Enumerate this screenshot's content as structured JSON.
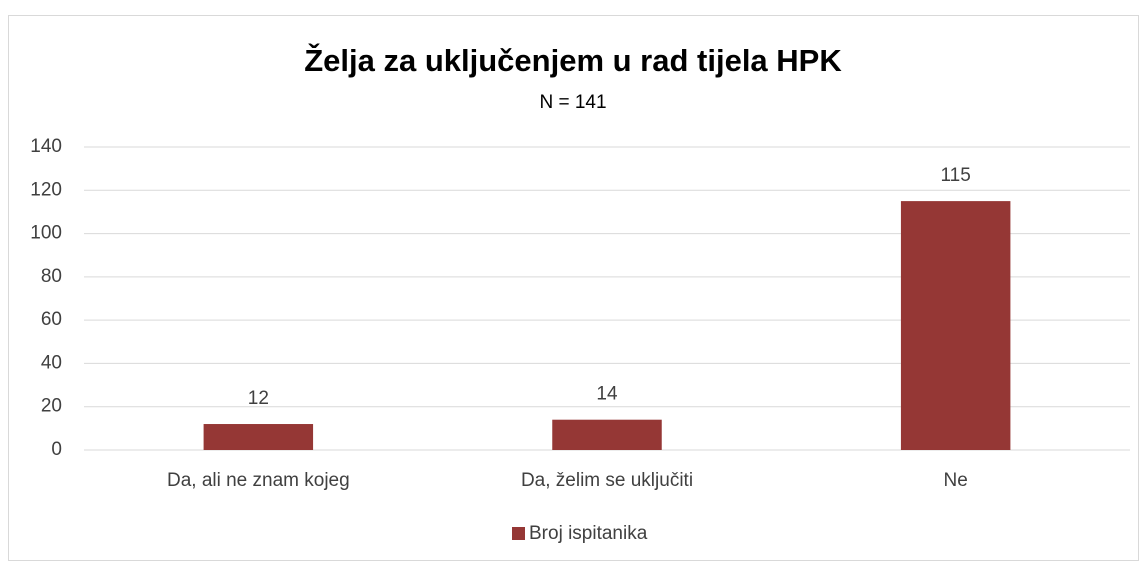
{
  "chart_data": {
    "type": "bar",
    "title": "Želja za uključenjem u rad tijela HPK",
    "subtitle": "N = 141",
    "categories": [
      "Da, ali ne znam kojeg",
      "Da, želim se uključiti",
      "Ne"
    ],
    "series": [
      {
        "name": "Broj ispitanika",
        "color": "#953735",
        "values": [
          12,
          14,
          115
        ]
      }
    ],
    "ylim": [
      0,
      140
    ],
    "yticks": [
      0,
      20,
      40,
      60,
      80,
      100,
      120,
      140
    ],
    "grid": true,
    "legend": "bottom"
  }
}
